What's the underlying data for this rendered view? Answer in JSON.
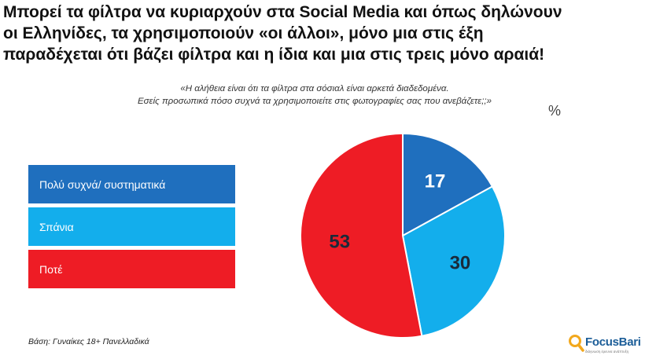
{
  "title": {
    "line1": "Μπορεί τα φίλτρα να κυριαρχούν στα Social Media και όπως δηλώνουν",
    "line2": "οι Ελληνίδες, τα χρησιμοποιούν «οι άλλοι», μόνο μια στις έξη",
    "line3": "παραδέχεται ότι βάζει φίλτρα και η ίδια και μια στις τρεις μόνο αραιά!"
  },
  "question": {
    "line1": "«Η αλήθεια είναι ότι τα φίλτρα στα σόσιαλ είναι αρκετά διαδεδομένα.",
    "line2": "Εσείς προσωπικά πόσο συχνά τα χρησιμοποιείτε στις φωτογραφίες σας που ανεβάζετε;;»"
  },
  "unit": "%",
  "chart_data": {
    "type": "pie",
    "title": "Εσείς προσωπικά πόσο συχνά τα χρησιμοποιείτε στις φωτογραφίες σας που ανεβάζετε;",
    "legend_position": "left",
    "slices": [
      {
        "label": "Πολύ συχνά/ συστηματικά",
        "value": 17,
        "color": "#1f6fbe"
      },
      {
        "label": "Σπάνια",
        "value": 30,
        "color": "#13aeec"
      },
      {
        "label": "Ποτέ",
        "value": 53,
        "color": "#ee1c25"
      }
    ]
  },
  "footnote": "Βάση: Γυναίκες 18+ Πανελλαδικά",
  "logo": {
    "name": "FocusBari",
    "tagline": "διάγνωση έρευνα ανάπτυξη"
  }
}
